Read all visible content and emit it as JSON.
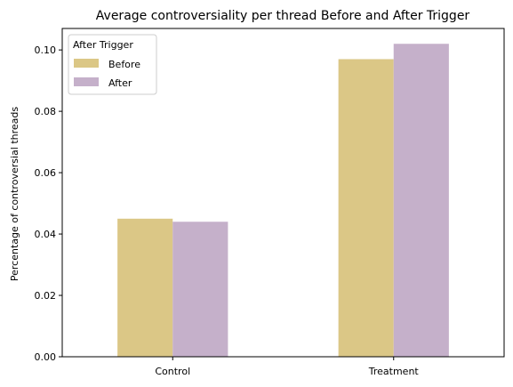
{
  "chart_data": {
    "type": "bar",
    "title": "Average controversiality per thread Before and After Trigger",
    "xlabel": "",
    "ylabel": "Percentage of controversial threads",
    "categories": [
      "Control",
      "Treatment"
    ],
    "series": [
      {
        "name": "Before",
        "values": [
          0.045,
          0.097
        ],
        "color": "#dbc786"
      },
      {
        "name": "After",
        "values": [
          0.044,
          0.102
        ],
        "color": "#c5b0ca"
      }
    ],
    "ylim": [
      0,
      0.107
    ],
    "yticks": [
      0.0,
      0.02,
      0.04,
      0.06,
      0.08,
      0.1
    ],
    "ytick_labels": [
      "0.00",
      "0.02",
      "0.04",
      "0.06",
      "0.08",
      "0.10"
    ],
    "grid": false,
    "legend": {
      "title": "After Trigger",
      "position": "top-left"
    }
  }
}
